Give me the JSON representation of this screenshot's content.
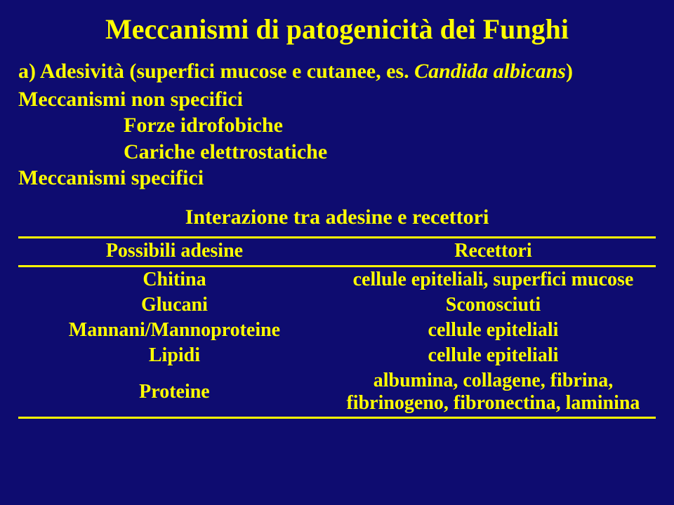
{
  "title": "Meccanismi di patogenicità dei Funghi",
  "section_a": {
    "intro_prefix": "a) Adesività ",
    "intro_paren": "(superfici mucose e cutanee, es. ",
    "candida": "Candida albicans",
    "intro_close": ")",
    "non_spec_heading": "Meccanismi non specifici",
    "non_spec_items": [
      "Forze idrofobiche",
      "Cariche elettrostatiche"
    ],
    "spec_heading": "Meccanismi specifici",
    "interaction_heading": "Interazione tra adesine e recettori"
  },
  "table": {
    "col_left_header": "Possibili adesine",
    "col_right_header": "Recettori",
    "rows": [
      {
        "left": "Chitina",
        "right": "cellule epiteliali, superfici mucose"
      },
      {
        "left": "Glucani",
        "right": "Sconosciuti"
      },
      {
        "left": "Mannani/Mannoproteine",
        "right": "cellule epiteliali"
      },
      {
        "left": "Lipidi",
        "right": "cellule epiteliali"
      },
      {
        "left": "Proteine",
        "right": "albumina, collagene, fibrina, fibrinogeno, fibronectina, laminina"
      }
    ]
  },
  "style": {
    "background_color": "#0e0c70",
    "text_color": "#ffff00",
    "rule_color": "#ffff00",
    "title_fontsize": 40,
    "body_fontsize": 30,
    "table_fontsize": 28,
    "font_family": "Times New Roman"
  }
}
